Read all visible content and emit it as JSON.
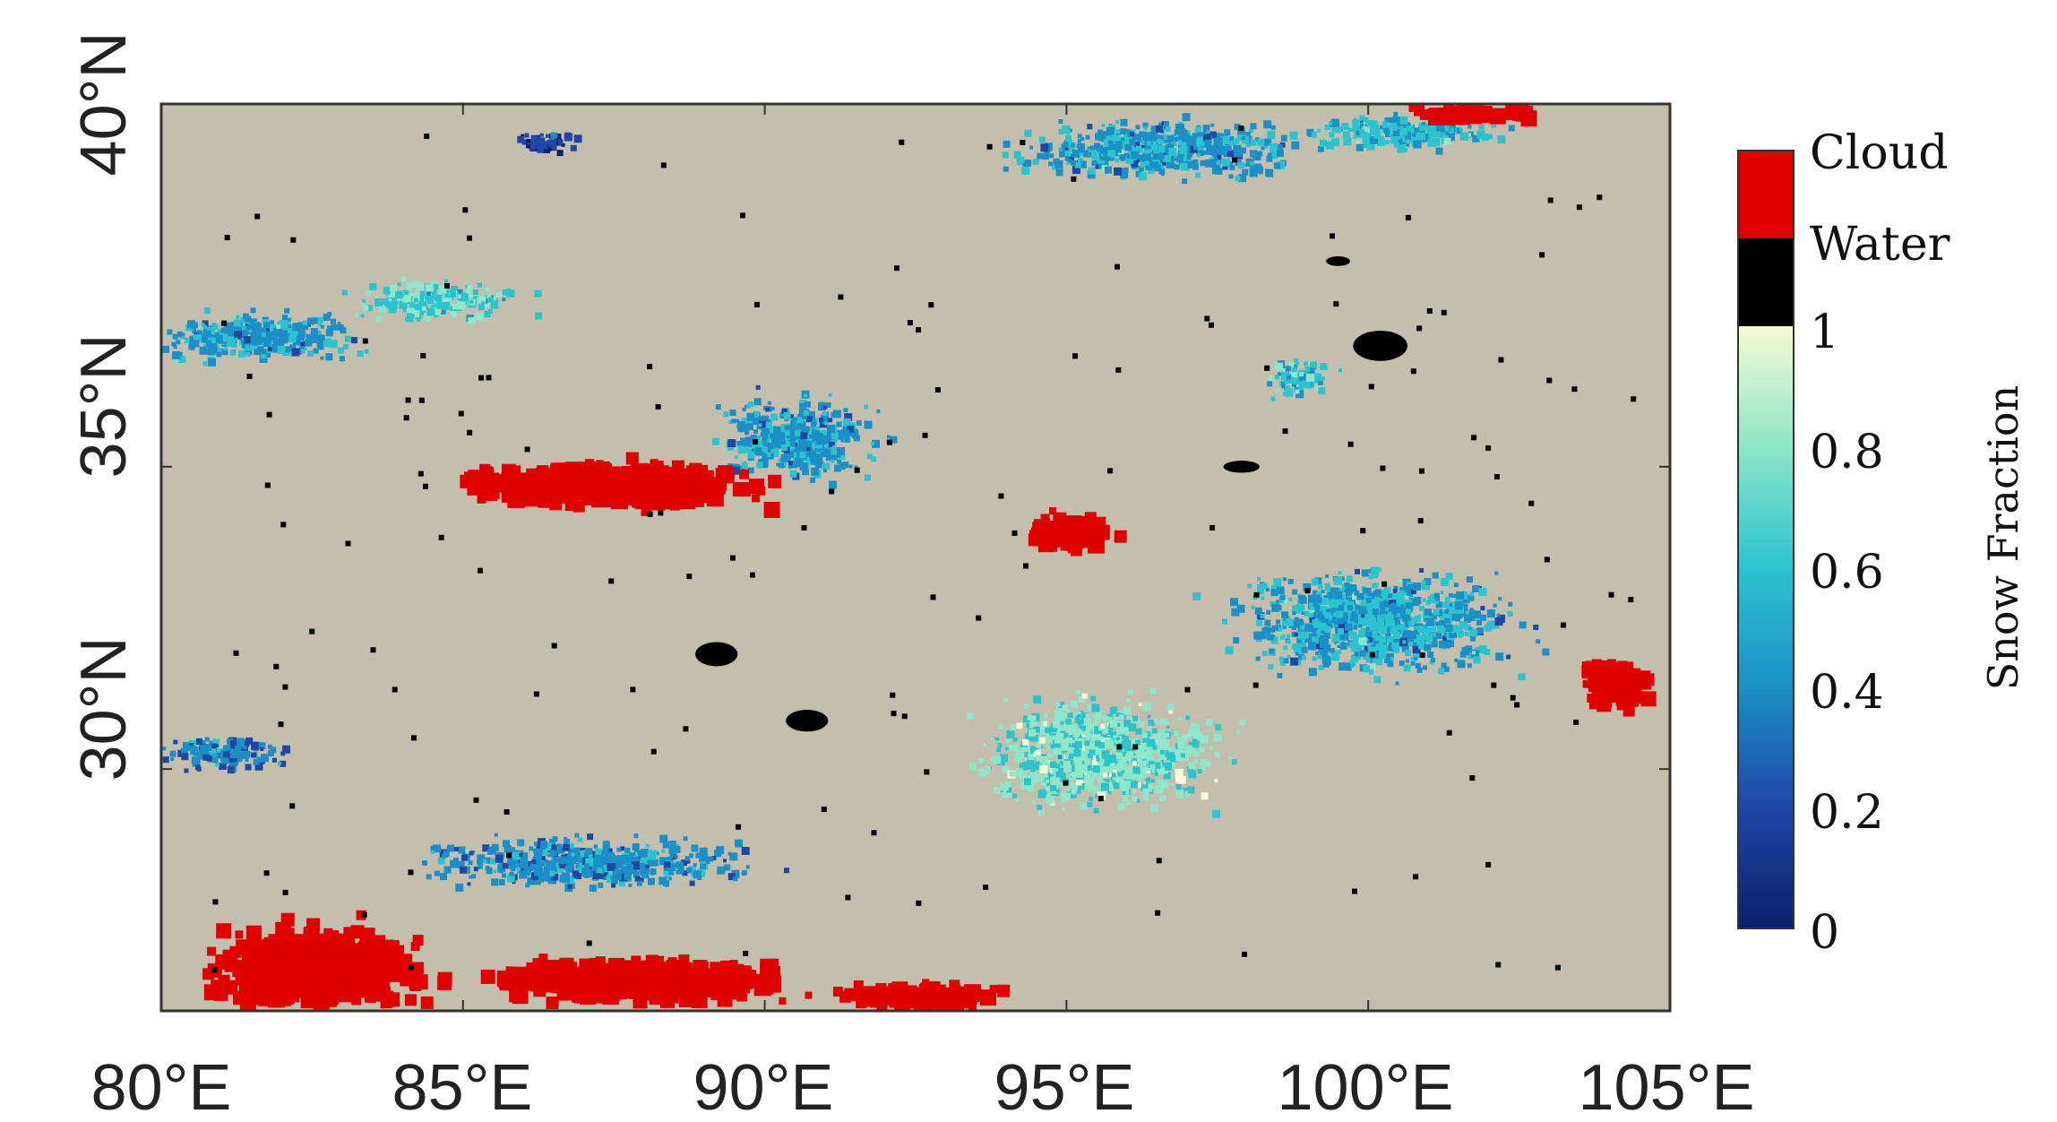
{
  "colors": {
    "land": "#c4bfad",
    "cloud": "#e00000",
    "water": "#000000",
    "frame": "#333333",
    "snow_colormap": [
      "#b3b3b3",
      "#0b1f6b",
      "#1f47a6",
      "#1b8fc6",
      "#2cc3cf",
      "#8fe6c8",
      "#f4fbd4"
    ]
  },
  "map": {
    "x_ticks": [
      "80°E",
      "85°E",
      "90°E",
      "95°E",
      "100°E",
      "105°E"
    ],
    "y_ticks": [
      "30°N",
      "35°N",
      "40°N"
    ],
    "x_range_deg": [
      80,
      105
    ],
    "y_range_deg": [
      26,
      41
    ],
    "snow_regions": [
      {
        "lon": 81.5,
        "lat": 37.2,
        "spread_lon": 2.5,
        "spread_lat": 0.6,
        "fraction": 0.45
      },
      {
        "lon": 84.5,
        "lat": 37.8,
        "spread_lon": 2.0,
        "spread_lat": 0.5,
        "fraction": 0.7
      },
      {
        "lon": 96.5,
        "lat": 40.3,
        "spread_lon": 3.5,
        "spread_lat": 0.7,
        "fraction": 0.45
      },
      {
        "lon": 100.5,
        "lat": 40.6,
        "spread_lon": 2.5,
        "spread_lat": 0.4,
        "fraction": 0.55
      },
      {
        "lon": 98.8,
        "lat": 36.5,
        "spread_lon": 0.8,
        "spread_lat": 0.5,
        "fraction": 0.6
      },
      {
        "lon": 95.5,
        "lat": 30.3,
        "spread_lon": 3.0,
        "spread_lat": 1.3,
        "fraction": 0.75
      },
      {
        "lon": 100.0,
        "lat": 32.5,
        "spread_lon": 3.5,
        "spread_lat": 1.2,
        "fraction": 0.5
      },
      {
        "lon": 87.0,
        "lat": 28.5,
        "spread_lon": 4.0,
        "spread_lat": 0.6,
        "fraction": 0.4
      },
      {
        "lon": 90.5,
        "lat": 35.5,
        "spread_lon": 2.0,
        "spread_lat": 1.0,
        "fraction": 0.45
      },
      {
        "lon": 81.0,
        "lat": 30.3,
        "spread_lon": 1.5,
        "spread_lat": 0.4,
        "fraction": 0.35
      },
      {
        "lon": 86.3,
        "lat": 40.4,
        "spread_lon": 0.7,
        "spread_lat": 0.25,
        "fraction": 0.2
      }
    ],
    "cloud_regions": [
      {
        "lon": 87.5,
        "lat": 34.8,
        "spread_lon": 3.5,
        "spread_lat": 0.5
      },
      {
        "lon": 82.5,
        "lat": 26.8,
        "spread_lon": 2.5,
        "spread_lat": 1.0
      },
      {
        "lon": 88.0,
        "lat": 26.6,
        "spread_lon": 3.5,
        "spread_lat": 0.5
      },
      {
        "lon": 92.5,
        "lat": 26.3,
        "spread_lon": 2.0,
        "spread_lat": 0.3
      },
      {
        "lon": 104.0,
        "lat": 31.5,
        "spread_lon": 0.8,
        "spread_lat": 0.6
      },
      {
        "lon": 95.0,
        "lat": 34.0,
        "spread_lon": 1.0,
        "spread_lat": 0.4
      },
      {
        "lon": 101.5,
        "lat": 41.0,
        "spread_lon": 1.5,
        "spread_lat": 0.2
      }
    ],
    "water_bodies": [
      {
        "lon": 100.2,
        "lat": 37.0,
        "spread_lon": 0.45,
        "spread_lat": 0.25
      },
      {
        "lon": 89.2,
        "lat": 31.9,
        "spread_lon": 0.35,
        "spread_lat": 0.2
      },
      {
        "lon": 90.7,
        "lat": 30.8,
        "spread_lon": 0.35,
        "spread_lat": 0.18
      },
      {
        "lon": 97.9,
        "lat": 35.0,
        "spread_lon": 0.3,
        "spread_lat": 0.1
      },
      {
        "lon": 99.5,
        "lat": 38.4,
        "spread_lon": 0.2,
        "spread_lat": 0.08
      }
    ]
  },
  "colorbar": {
    "labels": [
      "Cloud",
      "Water",
      "1",
      "0.8",
      "0.6",
      "0.4",
      "0.2",
      "0"
    ],
    "title": "Snow Fraction"
  }
}
